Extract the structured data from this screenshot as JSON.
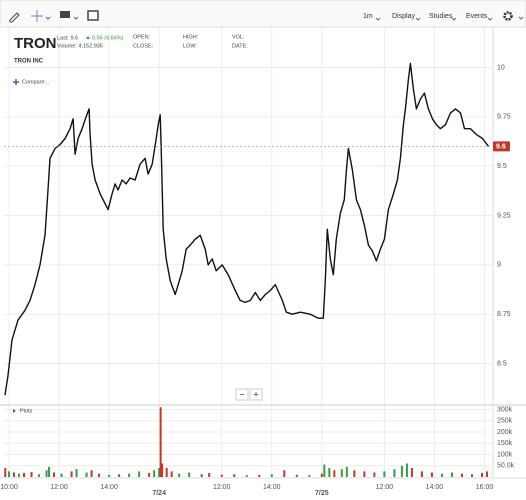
{
  "toolbar": {
    "items": [
      "1m",
      "Display",
      "Studies",
      "Events"
    ]
  },
  "header": {
    "symbol": "TRON",
    "name": "TRON INC",
    "last": "Last: 9.6",
    "change": "0.56 (6.84%)",
    "volume": "Volume: 4,152,935",
    "fields": [
      "OPEN:",
      "HIGH:",
      "VOL:",
      "CLOSE:",
      "LOW:",
      "DATE:"
    ],
    "compare": "Compare..."
  },
  "zoom": [
    "−",
    "+"
  ],
  "chart_data": [
    {
      "type": "line",
      "color": "#111111",
      "x": [
        0.34,
        0.46,
        0.62,
        0.86,
        1.14,
        1.34,
        1.54,
        1.74,
        1.94,
        2.06,
        2.14,
        2.34,
        2.54,
        2.74,
        2.94,
        3.06,
        3.14,
        3.26,
        3.42,
        3.58,
        3.7,
        3.74,
        3.82,
        3.94,
        4.14,
        4.34,
        4.46,
        4.62,
        4.74,
        4.86,
        5.02,
        5.18,
        5.34,
        5.54,
        5.74,
        5.94,
        6.06,
        6.22,
        6.38,
        6.46,
        6.54,
        6.58,
        6.66,
        6.78,
        6.94,
        7.14,
        7.26,
        7.42,
        7.58,
        7.74,
        7.94,
        8.14,
        8.34,
        8.46,
        8.62,
        8.78,
        9.02,
        9.26,
        9.54,
        9.74,
        9.94,
        10.14,
        10.34,
        10.54,
        10.74,
        10.94,
        11.14,
        11.42,
        11.58,
        11.82,
        12.14,
        12.54,
        12.86,
        13.06,
        13.14,
        13.22,
        13.34,
        13.46,
        13.58,
        13.74,
        13.9,
        13.98,
        14.06,
        14.22,
        14.38,
        14.54,
        14.7,
        14.86,
        15.02,
        15.18,
        15.34,
        15.5,
        15.66,
        15.86,
        16.02,
        16.14,
        16.26,
        16.34,
        16.46,
        16.54,
        16.66,
        16.78,
        16.94,
        17.1,
        17.26,
        17.42,
        17.58,
        17.74,
        17.94,
        18.14,
        18.34,
        18.54,
        18.7,
        18.94,
        19.18,
        19.42,
        19.66
      ],
      "values": [
        8.34,
        8.44,
        8.62,
        8.72,
        8.77,
        8.82,
        8.9,
        9.0,
        9.15,
        9.38,
        9.54,
        9.59,
        9.61,
        9.64,
        9.69,
        9.74,
        9.56,
        9.64,
        9.69,
        9.75,
        9.79,
        9.66,
        9.51,
        9.43,
        9.36,
        9.31,
        9.28,
        9.36,
        9.41,
        9.38,
        9.43,
        9.41,
        9.44,
        9.43,
        9.51,
        9.54,
        9.46,
        9.51,
        9.64,
        9.71,
        9.76,
        9.59,
        9.18,
        9.03,
        8.92,
        8.85,
        8.9,
        8.97,
        9.08,
        9.1,
        9.13,
        9.15,
        9.08,
        9.0,
        9.03,
        8.97,
        9.0,
        8.95,
        8.87,
        8.82,
        8.81,
        8.82,
        8.86,
        8.82,
        8.85,
        8.87,
        8.9,
        8.82,
        8.76,
        8.75,
        8.76,
        8.75,
        8.73,
        8.73,
        8.92,
        9.18,
        9.03,
        8.95,
        9.13,
        9.26,
        9.33,
        9.48,
        9.59,
        9.48,
        9.33,
        9.28,
        9.2,
        9.1,
        9.07,
        9.02,
        9.08,
        9.13,
        9.28,
        9.36,
        9.43,
        9.54,
        9.71,
        9.79,
        9.94,
        10.02,
        9.89,
        9.79,
        9.84,
        9.87,
        9.79,
        9.74,
        9.71,
        9.69,
        9.71,
        9.77,
        9.79,
        9.77,
        9.69,
        9.69,
        9.66,
        9.64,
        9.6
      ],
      "xlim": [
        0.3,
        19.8
      ],
      "xticks": [
        {
          "value": 0.5,
          "label": "10:00"
        },
        {
          "value": 2.5,
          "label": "12:00"
        },
        {
          "value": 4.5,
          "label": "14:00"
        },
        {
          "value": 6.5,
          "label": "7/24"
        },
        {
          "value": 9,
          "label": "12:00"
        },
        {
          "value": 11,
          "label": "14:00"
        },
        {
          "value": 13,
          "label": "7/25"
        },
        {
          "value": 15.5,
          "label": "12:00"
        },
        {
          "value": 17.5,
          "label": "14:00"
        },
        {
          "value": 19.5,
          "label": "16:00"
        }
      ],
      "ylim": [
        8.29,
        10.2
      ],
      "yticks": [
        8.5,
        8.75,
        9,
        9.25,
        9.5,
        9.75,
        10
      ],
      "grid": true,
      "last_value": 9.6,
      "last_color": "#c0392b"
    },
    {
      "type": "bar",
      "title": "Plots",
      "x": [
        0.35,
        0.5,
        0.7,
        0.9,
        1.1,
        1.4,
        1.7,
        2.0,
        2.1,
        2.3,
        2.6,
        3.0,
        3.2,
        3.6,
        3.8,
        4.1,
        4.5,
        4.9,
        5.3,
        5.7,
        6.1,
        6.3,
        6.5,
        6.56,
        6.62,
        6.8,
        7.0,
        7.3,
        7.7,
        8.2,
        8.5,
        9.0,
        9.5,
        10.0,
        10.5,
        11.0,
        11.5,
        12.0,
        12.5,
        13.0,
        13.1,
        13.3,
        13.5,
        13.8,
        14.0,
        14.3,
        14.7,
        15.1,
        15.5,
        15.9,
        16.2,
        16.4,
        16.6,
        17.0,
        17.4,
        17.8,
        18.2,
        18.6,
        19.0,
        19.4,
        19.6
      ],
      "values": [
        40000,
        25000,
        20000,
        15000,
        18000,
        22000,
        12000,
        30000,
        45000,
        20000,
        15000,
        25000,
        35000,
        20000,
        30000,
        15000,
        10000,
        12000,
        15000,
        25000,
        18000,
        30000,
        40000,
        310000,
        60000,
        40000,
        25000,
        15000,
        20000,
        12000,
        18000,
        10000,
        12000,
        8000,
        10000,
        12000,
        30000,
        10000,
        8000,
        15000,
        55000,
        40000,
        30000,
        35000,
        45000,
        30000,
        25000,
        20000,
        25000,
        35000,
        50000,
        60000,
        40000,
        25000,
        20000,
        15000,
        20000,
        15000,
        12000,
        18000,
        25000
      ],
      "colors": [
        "#c0392b",
        "#3a9a48",
        "#c0392b",
        "#3a9a48",
        "#c0392b",
        "#c0392b",
        "#3a9a48",
        "#3a9a48",
        "#3a9a48",
        "#c0392b",
        "#3a9a48",
        "#c0392b",
        "#3a9a48",
        "#3a9a48",
        "#c0392b",
        "#c0392b",
        "#3a9a48",
        "#c0392b",
        "#3a9a48",
        "#3a9a48",
        "#c0392b",
        "#3a9a48",
        "#3a9a48",
        "#c0392b",
        "#c0392b",
        "#c0392b",
        "#c0392b",
        "#3a9a48",
        "#3a9a48",
        "#c0392b",
        "#c0392b",
        "#c0392b",
        "#c0392b",
        "#3a9a48",
        "#c0392b",
        "#3a9a48",
        "#c0392b",
        "#c0392b",
        "#3a9a48",
        "#c0392b",
        "#3a9a48",
        "#3a9a48",
        "#c0392b",
        "#3a9a48",
        "#3a9a48",
        "#c0392b",
        "#c0392b",
        "#c0392b",
        "#3a9a48",
        "#3a9a48",
        "#3a9a48",
        "#3a9a48",
        "#c0392b",
        "#c0392b",
        "#c0392b",
        "#3a9a48",
        "#3a9a48",
        "#c0392b",
        "#c0392b",
        "#c0392b",
        "#c0392b"
      ],
      "xlim": [
        0.3,
        19.8
      ],
      "ylim": [
        0,
        320000
      ],
      "yticks": [
        {
          "value": 50000,
          "label": "50.0k"
        },
        {
          "value": 100000,
          "label": "100k"
        },
        {
          "value": 150000,
          "label": "150k"
        },
        {
          "value": 200000,
          "label": "200k"
        },
        {
          "value": 250000,
          "label": "250k"
        },
        {
          "value": 300000,
          "label": "300k"
        }
      ],
      "grid": true
    }
  ]
}
